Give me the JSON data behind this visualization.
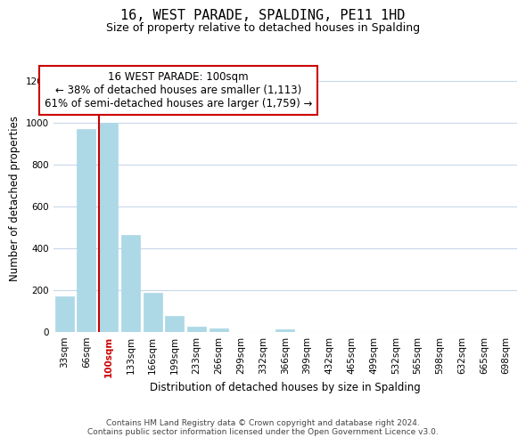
{
  "title": "16, WEST PARADE, SPALDING, PE11 1HD",
  "subtitle": "Size of property relative to detached houses in Spalding",
  "xlabel": "Distribution of detached houses by size in Spalding",
  "ylabel": "Number of detached properties",
  "bar_labels": [
    "33sqm",
    "66sqm",
    "100sqm",
    "133sqm",
    "166sqm",
    "199sqm",
    "233sqm",
    "266sqm",
    "299sqm",
    "332sqm",
    "366sqm",
    "399sqm",
    "432sqm",
    "465sqm",
    "499sqm",
    "532sqm",
    "565sqm",
    "598sqm",
    "632sqm",
    "665sqm",
    "698sqm"
  ],
  "bar_values": [
    170,
    970,
    1000,
    465,
    185,
    75,
    25,
    15,
    0,
    0,
    10,
    0,
    0,
    0,
    0,
    0,
    0,
    0,
    0,
    0,
    0
  ],
  "bar_color": "#add8e6",
  "vline_x_index": 2,
  "vline_color": "#cc0000",
  "ylim": [
    0,
    1280
  ],
  "yticks": [
    0,
    200,
    400,
    600,
    800,
    1000,
    1200
  ],
  "annotation_title": "16 WEST PARADE: 100sqm",
  "annotation_line1": "← 38% of detached houses are smaller (1,113)",
  "annotation_line2": "61% of semi-detached houses are larger (1,759) →",
  "annotation_box_color": "#ffffff",
  "annotation_box_edgecolor": "#cc0000",
  "footer_line1": "Contains HM Land Registry data © Crown copyright and database right 2024.",
  "footer_line2": "Contains public sector information licensed under the Open Government Licence v3.0.",
  "background_color": "#ffffff",
  "grid_color": "#c8d8e8",
  "title_fontsize": 11,
  "subtitle_fontsize": 9,
  "axis_label_fontsize": 8.5,
  "tick_fontsize": 7.5,
  "annotation_fontsize": 8.5,
  "footer_fontsize": 6.5
}
